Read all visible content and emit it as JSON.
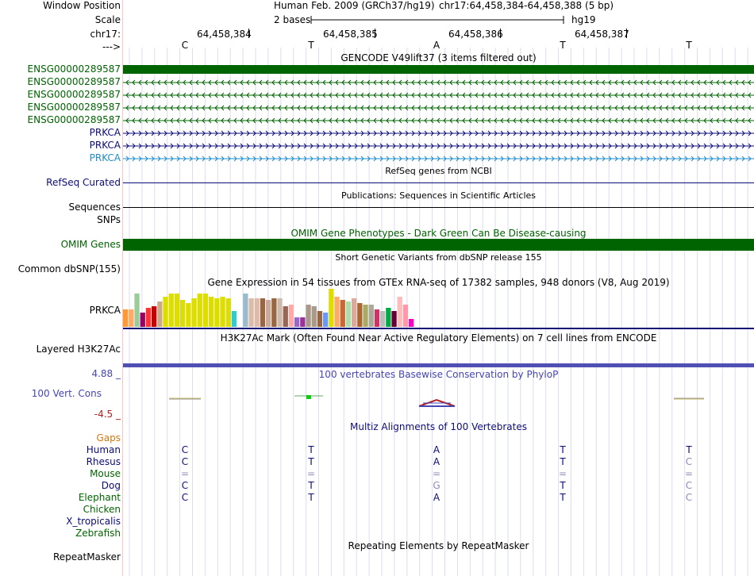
{
  "header": {
    "window_position_label": "Window Position",
    "scale_label": "Scale",
    "chrom_label": "chr17:",
    "strand_label": "--->",
    "assembly_text": "Human Feb. 2009 (GRCh37/hg19)",
    "position_text": "chr17:64,458,384-64,458,388 (5 bp)",
    "scale_text": "2 bases",
    "db_text": "hg19",
    "ticks": [
      "64,458,384",
      "64,458,385",
      "64,458,386",
      "64,458,387"
    ],
    "sequence": [
      "C",
      "T",
      "A",
      "T",
      "T"
    ]
  },
  "gencode": {
    "title": "GENCODE V49lift37 (3 items filtered out)",
    "tracks": [
      {
        "name": "ENSG00000289587",
        "style": "solid",
        "color": "#006400"
      },
      {
        "name": "ENSG00000289587",
        "style": "minus",
        "color": "#006400"
      },
      {
        "name": "ENSG00000289587",
        "style": "minus",
        "color": "#006400"
      },
      {
        "name": "ENSG00000289587",
        "style": "minus",
        "color": "#006400"
      },
      {
        "name": "ENSG00000289587",
        "style": "minus",
        "color": "#006400"
      },
      {
        "name": "PRKCA",
        "style": "plus",
        "color": "#0c0c78"
      },
      {
        "name": "PRKCA",
        "style": "plus",
        "color": "#0c0c78"
      },
      {
        "name": "PRKCA",
        "style": "plus",
        "color": "#1e8cc8"
      }
    ]
  },
  "refseq": {
    "title": "RefSeq genes from NCBI",
    "label": "RefSeq Curated"
  },
  "publications": {
    "title": "Publications: Sequences in Scientific Articles",
    "label": "Sequences"
  },
  "snps": {
    "label": "SNPs"
  },
  "omim": {
    "title": "OMIM Gene Phenotypes - Dark Green Can Be Disease-causing",
    "label": "OMIM Genes"
  },
  "dbsnp": {
    "title": "Short Genetic Variants from dbSNP release 155",
    "label": "Common dbSNP(155)"
  },
  "gtex": {
    "title": "Gene Expression in 54 tissues from GTEx RNA-seq of 17382 samples, 948 donors (V8, Aug 2019)",
    "label": "PRKCA"
  },
  "h3k27ac": {
    "title": "H3K27Ac Mark (Often Found Near Active Regulatory Elements) on 7 cell lines from ENCODE",
    "label": "Layered H3K27Ac"
  },
  "phylop": {
    "title": "100 vertebrates Basewise Conservation by PhyloP",
    "label": "100 Vert. Cons",
    "max_label": "4.88 _",
    "min_label": "-4.5 _"
  },
  "multiz": {
    "title": "Multiz Alignments of 100 Vertebrates",
    "gaps_label": "Gaps",
    "species": [
      {
        "name": "Human",
        "color": "#0c0c78",
        "bases": [
          "C",
          "T",
          "A",
          "T",
          "T"
        ]
      },
      {
        "name": "Rhesus",
        "color": "#0c0c78",
        "bases": [
          "C",
          "T",
          "A",
          "T",
          "C"
        ]
      },
      {
        "name": "Mouse",
        "color": "#006400",
        "bases": [
          "=",
          "=",
          "=",
          "=",
          "="
        ]
      },
      {
        "name": "Dog",
        "color": "#0c0c78",
        "bases": [
          "C",
          "T",
          "G",
          "T",
          "C"
        ]
      },
      {
        "name": "Elephant",
        "color": "#006400",
        "bases": [
          "C",
          "T",
          "A",
          "T",
          "C"
        ]
      },
      {
        "name": "Chicken",
        "color": "#006400",
        "bases": []
      },
      {
        "name": "X_tropicalis",
        "color": "#0c0c78",
        "bases": []
      },
      {
        "name": "Zebrafish",
        "color": "#006400",
        "bases": []
      }
    ]
  },
  "repeatmasker": {
    "title": "Repeating Elements by RepeatMasker",
    "label": "RepeatMasker"
  },
  "colors": {
    "gencode_green": "#006400",
    "known_blue": "#0c0c78",
    "refseq_navy": "#0c0c78",
    "gaps_orange": "#d2780a",
    "phylop_blue": "#4646b4",
    "phylop_red": "#b41e1e",
    "h3k27ac_bar": "#5050b4"
  }
}
